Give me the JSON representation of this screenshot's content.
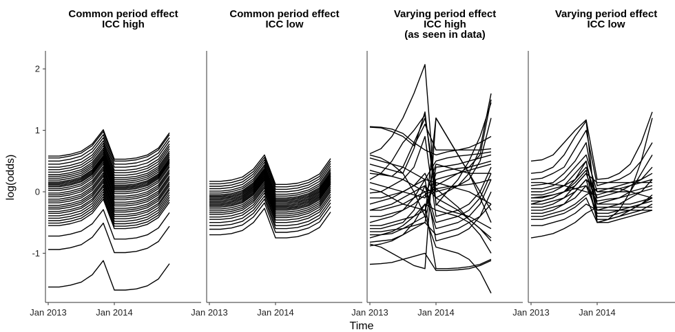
{
  "chart_data": {
    "type": "line",
    "facet": "panels",
    "ylabel": "log(odds)",
    "xlabel": "Time",
    "ylim": [
      -1.75,
      2.25
    ],
    "y_ticks": [
      -1,
      0,
      1,
      2
    ],
    "x_ticks": [
      "Jan 2013",
      "Jan 2014"
    ],
    "x_dates": [
      "2013-01",
      "2013-03",
      "2013-05",
      "2013-07",
      "2013-09",
      "2013-11",
      "2014-01",
      "2014-03",
      "2014-05",
      "2014-07",
      "2014-09",
      "2014-11"
    ],
    "period_effect": {
      "common": [
        0.0,
        0.0,
        0.03,
        0.08,
        0.2,
        0.43,
        -0.05,
        -0.05,
        -0.03,
        0.02,
        0.13,
        0.38
      ],
      "common_low": [
        -0.05,
        -0.05,
        -0.03,
        0.02,
        0.15,
        0.38,
        -0.1,
        -0.1,
        -0.08,
        -0.03,
        0.07,
        0.32
      ]
    },
    "panels": [
      {
        "title_lines": [
          "Common period effect",
          "ICC high"
        ],
        "clusters": [
          0.58,
          0.55,
          0.5,
          0.45,
          0.4,
          0.36,
          0.32,
          0.28,
          0.25,
          0.22,
          0.19,
          0.16,
          0.14,
          0.12,
          0.1,
          0.08,
          0.05,
          0.02,
          -0.02,
          -0.05,
          -0.08,
          -0.12,
          -0.15,
          -0.18,
          -0.22,
          -0.25,
          -0.28,
          -0.32,
          -0.35,
          -0.39,
          -0.43,
          -0.47,
          -0.51,
          -0.55,
          -0.72,
          -0.94,
          -1.55
        ]
      },
      {
        "title_lines": [
          "Common period effect",
          "ICC low"
        ],
        "clusters": [
          0.22,
          0.18,
          0.14,
          0.1,
          0.06,
          0.03,
          0.0,
          -0.02,
          -0.04,
          -0.06,
          -0.08,
          -0.1,
          -0.12,
          -0.14,
          -0.16,
          -0.18,
          -0.2,
          -0.23,
          -0.26,
          -0.29,
          -0.32,
          -0.36,
          -0.4,
          -0.45,
          -0.5,
          -0.56,
          -0.65
        ]
      },
      {
        "title_lines": [
          "Varying period effect",
          "ICC high",
          "(as seen in data)"
        ],
        "series": [
          [
            1.06,
            1.05,
            1.02,
            0.95,
            0.8,
            0.68,
            0.6,
            0.65,
            0.68,
            0.72,
            0.8,
            0.9
          ],
          [
            1.05,
            1.04,
            0.98,
            0.9,
            0.75,
            1.1,
            0.68,
            0.68,
            0.68,
            0.68,
            0.68,
            0.7
          ],
          [
            0.62,
            0.7,
            0.9,
            1.2,
            1.6,
            2.07,
            -0.22,
            0.0,
            0.1,
            0.3,
            0.7,
            1.6
          ],
          [
            0.55,
            0.5,
            0.45,
            0.4,
            0.3,
            0.2,
            0.5,
            0.55,
            0.58,
            0.6,
            0.62,
            0.65
          ],
          [
            0.45,
            0.4,
            0.35,
            0.3,
            0.7,
            1.3,
            -0.2,
            -0.3,
            -0.35,
            -0.4,
            -0.5,
            -0.6
          ],
          [
            0.3,
            0.28,
            0.25,
            0.4,
            0.8,
            1.2,
            0.1,
            0.2,
            0.3,
            0.4,
            0.6,
            1.5
          ],
          [
            0.2,
            0.3,
            0.5,
            0.8,
            1.0,
            1.25,
            0.0,
            0.05,
            0.1,
            0.2,
            0.5,
            1.2
          ],
          [
            0.15,
            0.1,
            0.05,
            0.0,
            -0.05,
            -0.1,
            0.45,
            0.4,
            0.35,
            0.3,
            0.3,
            0.3
          ],
          [
            0.05,
            0.0,
            -0.1,
            -0.2,
            -0.25,
            -0.3,
            0.3,
            0.35,
            0.38,
            0.4,
            0.45,
            0.5
          ],
          [
            -0.02,
            0.0,
            0.1,
            0.2,
            0.4,
            0.9,
            -0.4,
            -0.35,
            -0.3,
            -0.2,
            0.0,
            0.4
          ],
          [
            -0.1,
            -0.1,
            -0.05,
            0.0,
            0.1,
            0.3,
            -0.1,
            -0.2,
            -0.3,
            -0.45,
            -0.6,
            -0.75
          ],
          [
            -0.2,
            -0.15,
            -0.1,
            0.0,
            0.1,
            0.2,
            0.15,
            0.1,
            0.05,
            0.0,
            -0.1,
            -0.2
          ],
          [
            -0.3,
            -0.3,
            -0.25,
            -0.2,
            -0.1,
            0.0,
            -0.6,
            -0.55,
            -0.5,
            -0.4,
            -0.2,
            0.2
          ],
          [
            -0.4,
            -0.4,
            -0.35,
            -0.3,
            -0.2,
            -0.05,
            0.05,
            0.08,
            0.1,
            0.12,
            0.15,
            0.2
          ],
          [
            -0.5,
            -0.45,
            -0.4,
            -0.3,
            -0.1,
            0.2,
            -0.8,
            -0.75,
            -0.7,
            -0.6,
            -0.4,
            0.0
          ],
          [
            -0.55,
            -0.55,
            -0.5,
            -0.45,
            -0.4,
            -0.3,
            0.2,
            0.25,
            0.3,
            0.35,
            0.4,
            0.45
          ],
          [
            -0.6,
            -0.6,
            -0.55,
            -0.5,
            -0.3,
            0.1,
            -0.5,
            -0.45,
            -0.4,
            -0.3,
            -0.1,
            0.3
          ],
          [
            -0.65,
            -0.65,
            -0.62,
            -0.6,
            -0.55,
            -0.5,
            0.4,
            0.42,
            0.45,
            0.5,
            0.55,
            0.6
          ],
          [
            -0.7,
            -0.7,
            -0.68,
            -0.6,
            -0.5,
            -0.4,
            -0.9,
            -0.95,
            -1.0,
            -1.1,
            -1.3,
            -1.65
          ],
          [
            -0.75,
            -0.7,
            -0.65,
            -0.55,
            -0.4,
            -0.2,
            -0.3,
            -0.35,
            -0.4,
            -0.5,
            -0.7,
            -1.0
          ],
          [
            -0.82,
            -0.8,
            -0.78,
            -0.7,
            -0.6,
            -0.5,
            -0.7,
            -0.65,
            -0.6,
            -0.5,
            -0.4,
            -0.2
          ],
          [
            -0.88,
            -0.85,
            -0.8,
            -0.7,
            -0.5,
            -0.2,
            -1.25,
            -1.25,
            -1.24,
            -1.22,
            -1.18,
            -1.1
          ],
          [
            -1.18,
            -1.17,
            -1.15,
            -1.1,
            -1.05,
            -1.0,
            -1.28,
            -1.28,
            -1.27,
            -1.25,
            -1.2,
            -1.12
          ],
          [
            -0.85,
            -0.9,
            -1.0,
            -1.1,
            -1.2,
            -1.25,
            1.2,
            0.9,
            0.6,
            0.3,
            0.0,
            -0.3
          ],
          [
            0.6,
            0.55,
            0.45,
            0.3,
            0.0,
            -0.4,
            1.2,
            0.9,
            0.6,
            0.3,
            -0.1,
            -0.5
          ],
          [
            -0.3,
            -0.25,
            -0.2,
            -0.1,
            0.0,
            0.1,
            -0.1,
            0.0,
            0.2,
            0.5,
            0.9,
            1.45
          ],
          [
            0.35,
            0.3,
            0.25,
            0.2,
            0.1,
            0.0,
            0.05,
            -0.1,
            -0.25,
            -0.45,
            -0.6,
            -0.8
          ]
        ]
      },
      {
        "title_lines": [
          "Varying period effect",
          "ICC low"
        ],
        "series": [
          [
            0.5,
            0.52,
            0.6,
            0.8,
            1.0,
            1.17,
            0.2,
            0.22,
            0.3,
            0.45,
            0.8,
            1.3
          ],
          [
            0.3,
            0.32,
            0.4,
            0.6,
            0.9,
            1.15,
            -0.5,
            -0.45,
            -0.3,
            0.0,
            0.5,
            1.2
          ],
          [
            0.2,
            0.22,
            0.3,
            0.4,
            0.7,
            1.0,
            0.1,
            0.15,
            0.2,
            0.3,
            0.5,
            0.8
          ],
          [
            0.1,
            0.12,
            0.15,
            0.3,
            0.5,
            0.8,
            -0.2,
            -0.15,
            -0.1,
            0.0,
            0.3,
            0.6
          ],
          [
            0.05,
            0.05,
            0.1,
            0.2,
            0.4,
            0.6,
            0.0,
            0.05,
            0.1,
            0.15,
            0.2,
            0.3
          ],
          [
            0.0,
            0.0,
            0.05,
            0.1,
            0.3,
            0.5,
            -0.3,
            -0.25,
            -0.2,
            -0.1,
            0.0,
            0.2
          ],
          [
            -0.05,
            -0.05,
            0.0,
            0.1,
            0.2,
            0.4,
            -0.1,
            -0.05,
            0.0,
            0.1,
            0.2,
            0.4
          ],
          [
            -0.1,
            -0.1,
            -0.05,
            0.0,
            0.1,
            0.3,
            0.15,
            0.15,
            0.15,
            0.15,
            0.15,
            0.15
          ],
          [
            -0.15,
            -0.15,
            -0.1,
            0.0,
            0.2,
            0.5,
            -0.4,
            -0.4,
            -0.35,
            -0.3,
            -0.2,
            -0.1
          ],
          [
            -0.2,
            -0.2,
            -0.15,
            -0.1,
            0.0,
            0.2,
            0.0,
            0.0,
            0.0,
            0.0,
            0.05,
            0.1
          ],
          [
            -0.25,
            -0.25,
            -0.2,
            -0.1,
            0.1,
            0.3,
            -0.2,
            -0.2,
            -0.2,
            -0.2,
            -0.15,
            -0.1
          ],
          [
            -0.3,
            -0.3,
            -0.25,
            -0.2,
            -0.1,
            0.1,
            -0.35,
            -0.35,
            -0.3,
            -0.25,
            -0.2,
            -0.15
          ],
          [
            -0.35,
            -0.35,
            -0.3,
            -0.2,
            0.0,
            0.2,
            -0.45,
            -0.45,
            -0.4,
            -0.35,
            -0.3,
            -0.2
          ],
          [
            -0.4,
            -0.4,
            -0.35,
            -0.3,
            -0.2,
            -0.05,
            0.05,
            0.05,
            0.05,
            0.0,
            -0.05,
            -0.1
          ],
          [
            -0.45,
            -0.45,
            -0.4,
            -0.35,
            -0.25,
            -0.1,
            -0.5,
            -0.5,
            -0.45,
            -0.4,
            -0.35,
            -0.3
          ],
          [
            -0.55,
            -0.55,
            -0.5,
            -0.45,
            -0.35,
            -0.2,
            -0.3,
            -0.3,
            -0.3,
            -0.3,
            -0.3,
            -0.3
          ],
          [
            -0.75,
            -0.72,
            -0.68,
            -0.6,
            -0.5,
            -0.35,
            -0.25,
            -0.25,
            -0.25,
            -0.25,
            -0.25,
            -0.25
          ],
          [
            -0.1,
            -0.08,
            -0.05,
            0.0,
            0.05,
            0.1,
            -0.15,
            -0.12,
            -0.1,
            -0.05,
            0.0,
            0.05
          ],
          [
            0.15,
            0.15,
            0.12,
            0.1,
            0.05,
            0.0,
            -0.05,
            0.0,
            0.05,
            0.1,
            0.15,
            0.2
          ],
          [
            -0.2,
            -0.15,
            -0.1,
            0.0,
            0.15,
            0.35,
            -0.5,
            -0.45,
            -0.4,
            -0.3,
            -0.2,
            -0.05
          ]
        ]
      }
    ]
  }
}
